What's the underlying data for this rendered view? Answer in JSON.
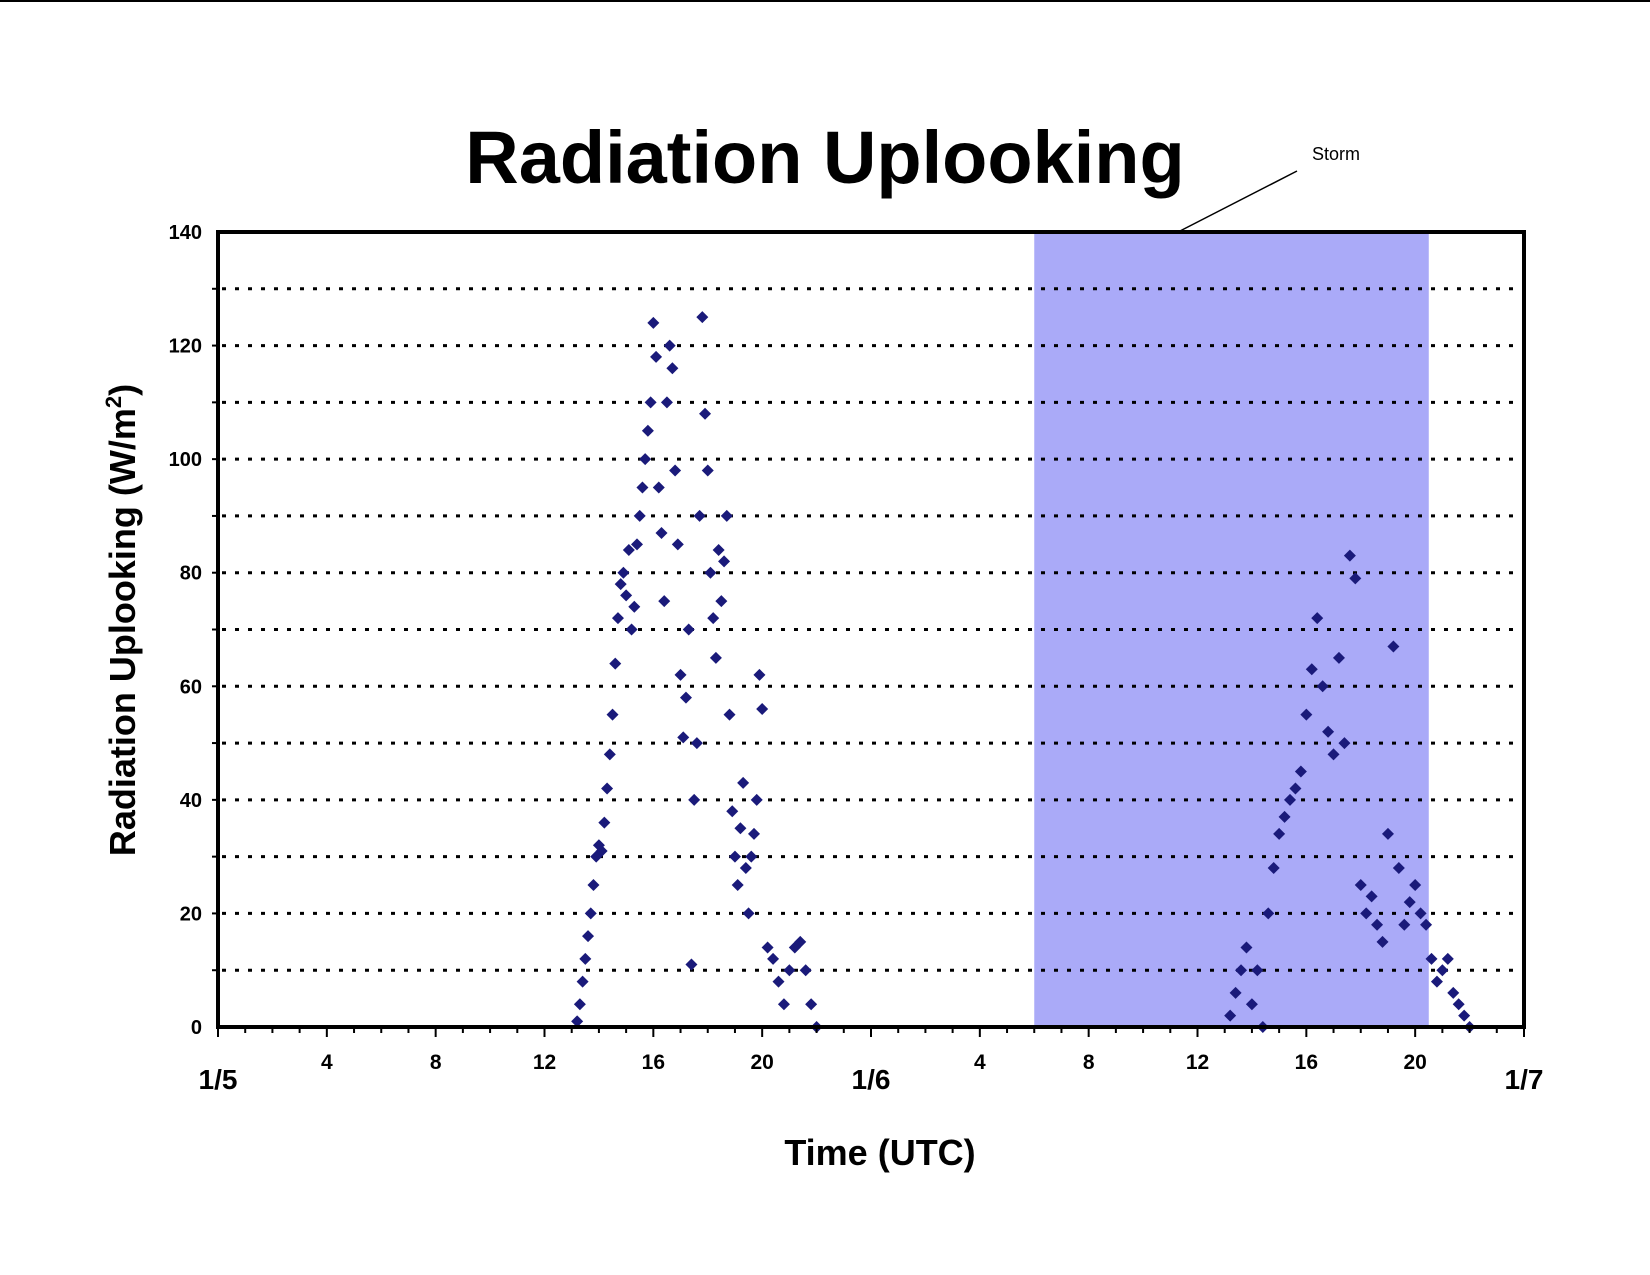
{
  "chart_data": {
    "type": "scatter",
    "title": "Radiation Uplooking",
    "xlabel": "Time (UTC)",
    "ylabel_main": "Radiation Uplooking (W/m",
    "ylabel_sup": "2",
    "ylabel_close": ")",
    "xlim": [
      0,
      48
    ],
    "ylim": [
      0,
      140
    ],
    "grid": true,
    "y_ticks": [
      0,
      20,
      40,
      60,
      80,
      100,
      120,
      140
    ],
    "hour_ticks": [
      {
        "x": 4,
        "label": "4"
      },
      {
        "x": 8,
        "label": "8"
      },
      {
        "x": 12,
        "label": "12"
      },
      {
        "x": 16,
        "label": "16"
      },
      {
        "x": 20,
        "label": "20"
      },
      {
        "x": 28,
        "label": "4"
      },
      {
        "x": 32,
        "label": "8"
      },
      {
        "x": 36,
        "label": "12"
      },
      {
        "x": 40,
        "label": "16"
      },
      {
        "x": 44,
        "label": "20"
      }
    ],
    "date_ticks": [
      {
        "x": 0,
        "label": "1/5"
      },
      {
        "x": 24,
        "label": "1/6"
      },
      {
        "x": 48,
        "label": "1/7"
      }
    ],
    "storm_region": {
      "x0": 30,
      "x1": 44.5,
      "label": "Storm",
      "color": "#aaaaf8"
    },
    "marker_color": "#1a1a7a",
    "series": [
      {
        "points": [
          [
            13.2,
            1
          ],
          [
            13.3,
            4
          ],
          [
            13.4,
            8
          ],
          [
            13.5,
            12
          ],
          [
            13.6,
            16
          ],
          [
            13.7,
            20
          ],
          [
            13.8,
            25
          ],
          [
            13.9,
            30
          ],
          [
            14.0,
            32
          ],
          [
            14.1,
            31
          ],
          [
            14.2,
            36
          ],
          [
            14.3,
            42
          ],
          [
            14.4,
            48
          ],
          [
            14.5,
            55
          ],
          [
            14.6,
            64
          ],
          [
            14.7,
            72
          ],
          [
            14.8,
            78
          ],
          [
            14.9,
            80
          ],
          [
            15.0,
            76
          ],
          [
            15.1,
            84
          ],
          [
            15.2,
            70
          ],
          [
            15.3,
            74
          ],
          [
            15.4,
            85
          ],
          [
            15.5,
            90
          ],
          [
            15.6,
            95
          ],
          [
            15.7,
            100
          ],
          [
            15.8,
            105
          ],
          [
            15.9,
            110
          ],
          [
            16.0,
            124
          ],
          [
            16.1,
            118
          ],
          [
            16.2,
            95
          ],
          [
            16.3,
            87
          ],
          [
            16.4,
            75
          ],
          [
            16.5,
            110
          ],
          [
            16.6,
            120
          ],
          [
            16.7,
            116
          ],
          [
            16.8,
            98
          ],
          [
            16.9,
            85
          ],
          [
            17.0,
            62
          ],
          [
            17.1,
            51
          ],
          [
            17.2,
            58
          ],
          [
            17.3,
            70
          ],
          [
            17.4,
            11
          ],
          [
            17.5,
            40
          ],
          [
            17.6,
            50
          ],
          [
            17.7,
            90
          ],
          [
            17.8,
            125
          ],
          [
            17.9,
            108
          ],
          [
            18.0,
            98
          ],
          [
            18.1,
            80
          ],
          [
            18.2,
            72
          ],
          [
            18.3,
            65
          ],
          [
            18.4,
            84
          ],
          [
            18.5,
            75
          ],
          [
            18.6,
            82
          ],
          [
            18.7,
            90
          ],
          [
            18.8,
            55
          ],
          [
            18.9,
            38
          ],
          [
            19.0,
            30
          ],
          [
            19.1,
            25
          ],
          [
            19.2,
            35
          ],
          [
            19.3,
            43
          ],
          [
            19.4,
            28
          ],
          [
            19.5,
            20
          ],
          [
            19.6,
            30
          ],
          [
            19.7,
            34
          ],
          [
            19.8,
            40
          ],
          [
            19.9,
            62
          ],
          [
            20.0,
            56
          ],
          [
            20.2,
            14
          ],
          [
            20.4,
            12
          ],
          [
            20.6,
            8
          ],
          [
            20.8,
            4
          ],
          [
            21.0,
            10
          ],
          [
            21.2,
            14
          ],
          [
            21.4,
            15
          ],
          [
            21.6,
            10
          ],
          [
            21.8,
            4
          ],
          [
            22.0,
            0
          ],
          [
            37.2,
            2
          ],
          [
            37.4,
            6
          ],
          [
            37.6,
            10
          ],
          [
            37.8,
            14
          ],
          [
            38.0,
            4
          ],
          [
            38.2,
            10
          ],
          [
            38.4,
            0
          ],
          [
            38.6,
            20
          ],
          [
            38.8,
            28
          ],
          [
            39.0,
            34
          ],
          [
            39.2,
            37
          ],
          [
            39.4,
            40
          ],
          [
            39.6,
            42
          ],
          [
            39.8,
            45
          ],
          [
            40.0,
            55
          ],
          [
            40.2,
            63
          ],
          [
            40.4,
            72
          ],
          [
            40.6,
            60
          ],
          [
            40.8,
            52
          ],
          [
            41.0,
            48
          ],
          [
            41.2,
            65
          ],
          [
            41.4,
            50
          ],
          [
            41.6,
            83
          ],
          [
            41.8,
            79
          ],
          [
            42.0,
            25
          ],
          [
            42.2,
            20
          ],
          [
            42.4,
            23
          ],
          [
            42.6,
            18
          ],
          [
            42.8,
            15
          ],
          [
            43.0,
            34
          ],
          [
            43.2,
            67
          ],
          [
            43.4,
            28
          ],
          [
            43.6,
            18
          ],
          [
            43.8,
            22
          ],
          [
            44.0,
            25
          ],
          [
            44.2,
            20
          ],
          [
            44.4,
            18
          ],
          [
            44.6,
            12
          ],
          [
            44.8,
            8
          ],
          [
            45.0,
            10
          ],
          [
            45.2,
            12
          ],
          [
            45.4,
            6
          ],
          [
            45.6,
            4
          ],
          [
            45.8,
            2
          ],
          [
            46.0,
            0
          ]
        ]
      }
    ]
  }
}
